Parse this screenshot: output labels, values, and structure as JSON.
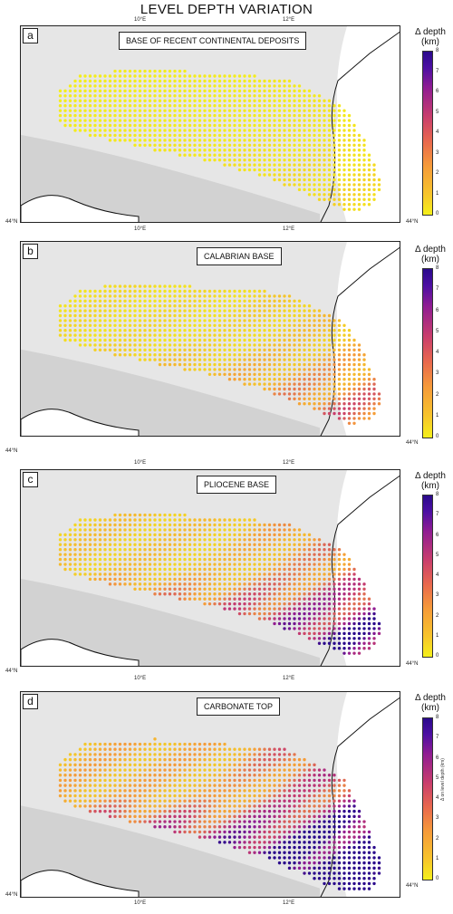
{
  "title": "LEVEL DEPTH VARIATION",
  "colorbar": {
    "ticks": [
      "8",
      "7",
      "6",
      "5",
      "4",
      "3",
      "2",
      "1",
      "0"
    ],
    "colors": [
      "#f4f01a",
      "#f59a3a",
      "#c93e6d",
      "#8f1c93",
      "#2a0a8c"
    ],
    "side_label": "Δ on level depth (km)"
  },
  "panels": [
    {
      "letter": "a",
      "name": "BASE OF RECENT CONTINENTAL DEPOSITS",
      "lon_top": [
        "10°E",
        "12°E"
      ],
      "lon_bottom": [
        "10°E",
        "12°E"
      ],
      "lat": "44°N",
      "cb_title": "",
      "intensity": 0.05
    },
    {
      "letter": "b",
      "name": "CALABRIAN BASE",
      "lon_top": [],
      "lon_bottom": [
        "10°E",
        "12°E"
      ],
      "lat": "44°N",
      "cb_title": "Δ depth\n(km)",
      "intensity": 0.25
    },
    {
      "letter": "c",
      "name": "PLIOCENE BASE",
      "lon_top": [],
      "lon_bottom": [
        "10°E",
        "12°E"
      ],
      "lat": "44°N",
      "cb_title": "Δ depth\n(km)",
      "intensity": 0.55
    },
    {
      "letter": "d",
      "name": "CARBONATE TOP",
      "lon_top": [],
      "lon_bottom": [
        "10°E",
        "12°E"
      ],
      "lat": "44°N",
      "cb_title": "Δ depth\n(km)",
      "intensity": 0.85
    }
  ]
}
